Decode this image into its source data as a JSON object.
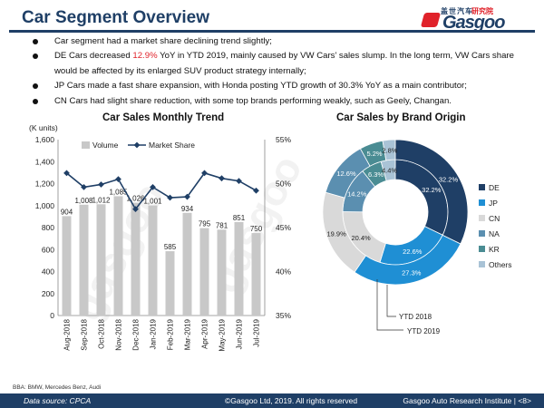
{
  "header": {
    "title": "Car Segment Overview",
    "logo_cn_a": "盖世汽车",
    "logo_cn_b": "研究院",
    "logo_text": "Gasgoo"
  },
  "bullets": [
    {
      "pre": "Car segment had a market share declining trend slightly;",
      "hl": "",
      "post": ""
    },
    {
      "pre": "DE Cars decreased ",
      "hl": "12.9%",
      "post": " YoY in YTD 2019, mainly caused by VW Cars’ sales slump. In the long term, VW Cars share would be affected by its enlarged SUV product strategy internally;"
    },
    {
      "pre": "JP Cars made a fast share expansion, with Honda posting YTD growth of 30.3% YoY as a main contributor;",
      "hl": "",
      "post": ""
    },
    {
      "pre": "CN Cars had slight share reduction, with some top brands performing weakly, such as Geely, Changan.",
      "hl": "",
      "post": ""
    }
  ],
  "chart_data": [
    {
      "type": "bar",
      "title": "Car Sales Monthly Trend",
      "ylabel": "(K units)",
      "categories": [
        "Aug-2018",
        "Sep-2018",
        "Oct-2018",
        "Nov-2018",
        "Dec-2018",
        "Jan-2019",
        "Feb-2019",
        "Mar-2019",
        "Apr-2019",
        "May-2019",
        "Jun-2019",
        "Jul-2019"
      ],
      "series": [
        {
          "name": "Volume",
          "values": [
            904,
            1008,
            1012,
            1085,
            1026,
            1001,
            585,
            934,
            795,
            781,
            851,
            750
          ],
          "color": "#c8c8c8",
          "labels": [
            "904",
            "1,008",
            "1,012",
            "1,085",
            "1,026",
            "1,001",
            "585",
            "934",
            "795",
            "781",
            "851",
            "750"
          ]
        },
        {
          "name": "Market Share",
          "values": [
            51.2,
            49.6,
            49.9,
            50.5,
            47.1,
            49.6,
            48.4,
            48.5,
            51.2,
            50.6,
            50.3,
            49.2
          ],
          "color": "#1f3f66",
          "axis": "right"
        }
      ],
      "ylim": [
        0,
        1600
      ],
      "yticks": [
        "0",
        "200",
        "400",
        "600",
        "800",
        "1,000",
        "1,200",
        "1,400",
        "1,600"
      ],
      "y2lim": [
        35,
        55
      ],
      "y2ticks": [
        "35%",
        "40%",
        "45%",
        "50%",
        "55%"
      ],
      "legend": "top"
    },
    {
      "type": "pie",
      "title": "Car Sales by Brand Origin",
      "categories": [
        "DE",
        "JP",
        "CN",
        "NA",
        "KR",
        "Others"
      ],
      "colors": [
        "#1f3f66",
        "#1f8fd4",
        "#d9d9d9",
        "#5b8fb0",
        "#4a8c93",
        "#a9c3d6"
      ],
      "series": [
        {
          "name": "YTD 2018",
          "values": [
            32.2,
            22.6,
            20.4,
            14.2,
            6.3,
            4.4
          ],
          "labels": [
            "32.2%",
            "22.6%",
            "20.4%",
            "14.2%",
            "6.3%",
            "4.4%"
          ],
          "callout": "YTD 2018"
        },
        {
          "name": "YTD 2019",
          "values": [
            32.2,
            27.3,
            19.9,
            12.6,
            5.2,
            2.8
          ],
          "labels": [
            "32.2%",
            "27.3%",
            "19.9%",
            "12.6%",
            "5.2%",
            "2.8%"
          ],
          "callout": "YTD 2019"
        }
      ],
      "legend": "right"
    }
  ],
  "footnote": "BBA: BMW, Mercedes Benz, Audi",
  "footer": {
    "source": "Data source: CPCA",
    "copyright": "©Gasgoo Ltd, 2019. All rights reserved",
    "institute": "Gasgoo Auto Research Institute",
    "page": "<8>"
  }
}
